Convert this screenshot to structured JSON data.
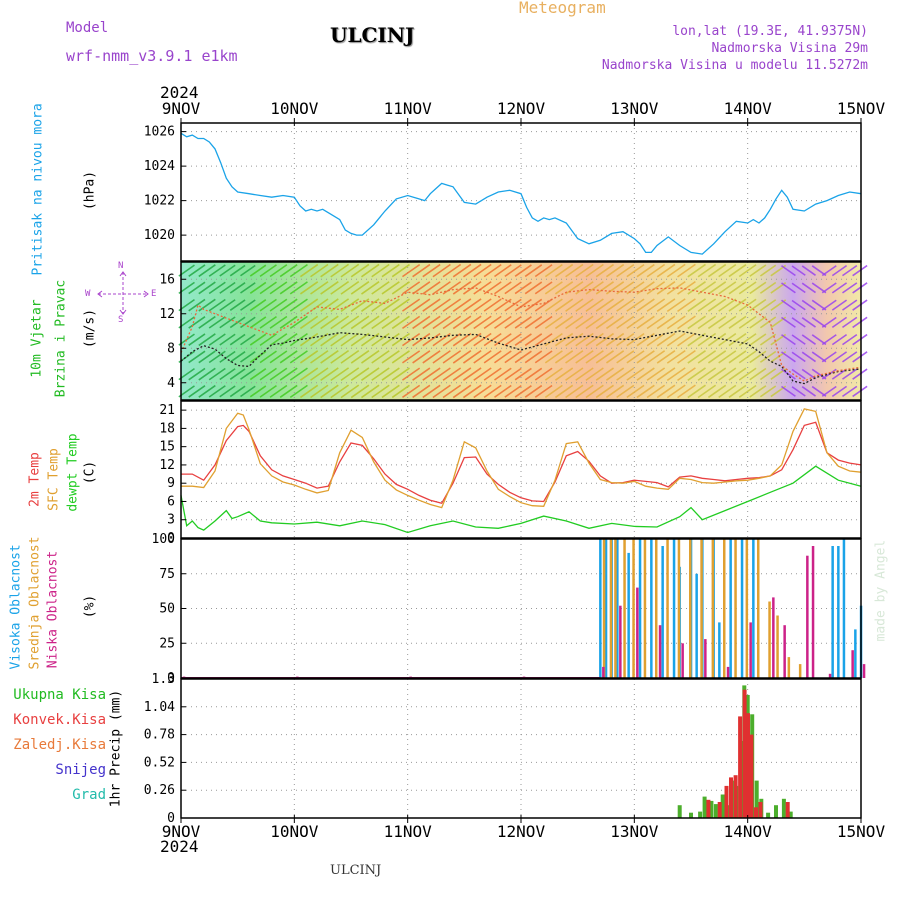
{
  "header": {
    "model_label": "Model",
    "model_name": "wrf-nmm_v3.9.1 e1km",
    "title": "ULCINJ",
    "meteogram": "Meteogram",
    "lonlat": "lon,lat (19.3E, 41.9375N)",
    "altitude": "Nadmorska Visina 29m",
    "model_altitude": "Nadmorska Visina u modelu 11.5272m",
    "year_top": "2024",
    "year_bottom": "2024",
    "footer": "ULCINJ",
    "credit": "made by Angel"
  },
  "colors": {
    "pressure": "#1aa3e8",
    "wind_label": "#22bb22",
    "temp2m": "#e84040",
    "sfc": "#e0a030",
    "dewpt": "#22cc22",
    "high_cloud": "#1aa3e8",
    "mid_cloud": "#e0a030",
    "low_cloud": "#cc2288",
    "precip_total": "#4cae2c",
    "precip_conv": "#e03030"
  },
  "chart_data": [
    {
      "type": "line",
      "panel": "pressure",
      "ylabel_lines": [
        "Pritisak na nivou mora"
      ],
      "unit": "(hPa)",
      "x_ticks": [
        "9NOV",
        "10NOV",
        "11NOV",
        "12NOV",
        "13NOV",
        "14NOV",
        "15NOV"
      ],
      "ylim": [
        1018.5,
        1026.5
      ],
      "yticks": [
        1020,
        1022,
        1024,
        1026
      ],
      "grid": true,
      "series": [
        {
          "color_key": "pressure",
          "x": [
            0,
            0.05,
            0.1,
            0.15,
            0.2,
            0.25,
            0.3,
            0.35,
            0.4,
            0.45,
            0.5,
            0.6,
            0.7,
            0.8,
            0.9,
            1.0,
            1.05,
            1.1,
            1.15,
            1.2,
            1.25,
            1.3,
            1.4,
            1.45,
            1.5,
            1.55,
            1.6,
            1.7,
            1.8,
            1.9,
            2.0,
            2.1,
            2.15,
            2.2,
            2.25,
            2.3,
            2.35,
            2.4,
            2.5,
            2.6,
            2.7,
            2.8,
            2.9,
            3.0,
            3.05,
            3.1,
            3.15,
            3.2,
            3.25,
            3.3,
            3.4,
            3.5,
            3.6,
            3.7,
            3.8,
            3.9,
            4.0,
            4.05,
            4.1,
            4.15,
            4.2,
            4.3,
            4.4,
            4.5,
            4.6,
            4.7,
            4.8,
            4.9,
            5.0,
            5.05,
            5.1,
            5.15,
            5.2,
            5.25,
            5.3,
            5.35,
            5.4,
            5.5,
            5.6,
            5.7,
            5.8,
            5.9,
            6.0
          ],
          "y": [
            1025.9,
            1025.7,
            1025.8,
            1025.6,
            1025.6,
            1025.4,
            1025.0,
            1024.2,
            1023.3,
            1022.8,
            1022.5,
            1022.4,
            1022.3,
            1022.2,
            1022.3,
            1022.2,
            1021.7,
            1021.4,
            1021.5,
            1021.4,
            1021.5,
            1021.3,
            1020.9,
            1020.3,
            1020.1,
            1020.0,
            1020.0,
            1020.6,
            1021.4,
            1022.1,
            1022.3,
            1022.1,
            1022.0,
            1022.4,
            1022.7,
            1023.0,
            1022.9,
            1022.8,
            1021.9,
            1021.8,
            1022.2,
            1022.5,
            1022.6,
            1022.4,
            1021.6,
            1021.0,
            1020.8,
            1021.0,
            1020.9,
            1021.0,
            1020.7,
            1019.8,
            1019.5,
            1019.7,
            1020.1,
            1020.2,
            1019.8,
            1019.5,
            1019.0,
            1019.0,
            1019.4,
            1019.9,
            1019.4,
            1019.0,
            1018.9,
            1019.5,
            1020.2,
            1020.8,
            1020.7,
            1020.9,
            1020.7,
            1021.0,
            1021.5,
            1022.1,
            1022.6,
            1022.2,
            1021.5,
            1021.4,
            1021.8,
            1022.0,
            1022.3,
            1022.5,
            1022.4
          ]
        }
      ]
    },
    {
      "type": "line",
      "panel": "wind",
      "ylabel_lines": [
        "10m Vjetar",
        "Brzina i Pravac"
      ],
      "unit": "(m/s)",
      "compass": {
        "n": "N",
        "s": "S",
        "e": "E",
        "w": "W"
      },
      "ylim": [
        2,
        18
      ],
      "yticks": [
        4,
        8,
        12,
        16
      ],
      "grid": true,
      "series": [
        {
          "name": "",
          "color": "#222222",
          "x": [
            0,
            0.1,
            0.2,
            0.3,
            0.4,
            0.5,
            0.6,
            0.7,
            0.8,
            0.9,
            1.0,
            1.2,
            1.4,
            1.6,
            1.8,
            2.0,
            2.2,
            2.4,
            2.6,
            2.8,
            3.0,
            3.2,
            3.4,
            3.6,
            3.8,
            4.0,
            4.2,
            4.4,
            4.6,
            4.8,
            5.0,
            5.1,
            5.2,
            5.3,
            5.4,
            5.5,
            5.6,
            5.8,
            6.0
          ],
          "y": [
            6.5,
            7.6,
            8.3,
            7.9,
            6.8,
            6.0,
            5.9,
            7.2,
            8.4,
            8.6,
            8.9,
            9.3,
            9.8,
            9.6,
            9.3,
            9.0,
            9.2,
            9.5,
            9.6,
            8.6,
            7.8,
            8.5,
            9.2,
            9.4,
            9.1,
            9.0,
            9.5,
            10.0,
            9.5,
            9.0,
            8.5,
            7.6,
            6.5,
            5.9,
            4.2,
            3.9,
            4.6,
            5.3,
            5.6
          ]
        },
        {
          "name": "",
          "color": "#e86a3a",
          "x": [
            0,
            0.1,
            0.15,
            0.2,
            0.4,
            0.6,
            0.8,
            1.0,
            1.2,
            1.4,
            1.6,
            1.8,
            2.0,
            2.2,
            2.4,
            2.6,
            2.8,
            3.0,
            3.2,
            3.4,
            3.6,
            3.8,
            4.0,
            4.2,
            4.4,
            4.6,
            4.8,
            5.0,
            5.2,
            5.3,
            5.4,
            5.5,
            5.6,
            5.8,
            6.0
          ],
          "y": [
            7.5,
            10.5,
            13.0,
            12.5,
            11.5,
            10.5,
            9.5,
            11.0,
            12.8,
            12.5,
            13.5,
            13.2,
            14.5,
            14.2,
            14.8,
            15.0,
            14.0,
            12.8,
            13.2,
            14.5,
            14.8,
            14.6,
            14.5,
            14.9,
            15.0,
            14.5,
            14.0,
            13.0,
            11.0,
            6.0,
            5.0,
            4.2,
            4.8,
            5.4,
            5.8
          ]
        }
      ]
    },
    {
      "type": "line",
      "panel": "temperature",
      "ylabel_lines": [
        "2m Temp",
        "SFC Temp",
        "dewpt Temp"
      ],
      "unit": "(C)",
      "ylim": [
        0,
        22.5
      ],
      "yticks": [
        0,
        3,
        6,
        9,
        12,
        15,
        18,
        21
      ],
      "grid": true,
      "series": [
        {
          "name": "2m Temp",
          "color_key": "temp2m",
          "x": [
            0,
            0.1,
            0.2,
            0.3,
            0.4,
            0.5,
            0.55,
            0.6,
            0.7,
            0.8,
            0.9,
            1.0,
            1.1,
            1.2,
            1.3,
            1.4,
            1.5,
            1.6,
            1.7,
            1.8,
            1.9,
            2.0,
            2.1,
            2.2,
            2.3,
            2.4,
            2.5,
            2.6,
            2.7,
            2.8,
            2.9,
            3.0,
            3.1,
            3.2,
            3.3,
            3.4,
            3.5,
            3.6,
            3.7,
            3.8,
            3.9,
            4.0,
            4.1,
            4.2,
            4.3,
            4.4,
            4.5,
            4.6,
            4.7,
            4.8,
            4.9,
            5.0,
            5.1,
            5.2,
            5.3,
            5.4,
            5.5,
            5.6,
            5.7,
            5.8,
            5.9,
            6.0
          ],
          "y": [
            10.5,
            10.5,
            9.5,
            12.0,
            16.0,
            18.3,
            18.5,
            17.5,
            13.5,
            11.2,
            10.2,
            9.6,
            9.0,
            8.2,
            8.5,
            12.5,
            15.6,
            15.2,
            13.0,
            10.5,
            8.8,
            8.0,
            7.0,
            6.2,
            5.7,
            9.0,
            13.2,
            13.3,
            10.5,
            8.8,
            7.5,
            6.6,
            6.1,
            6.0,
            9.2,
            13.5,
            14.2,
            12.6,
            10.2,
            9.0,
            9.1,
            9.5,
            9.3,
            9.1,
            8.4,
            10.0,
            10.2,
            9.8,
            9.6,
            9.4,
            9.6,
            9.8,
            9.9,
            10.2,
            11.2,
            14.5,
            18.5,
            19.0,
            14.0,
            12.8,
            12.3,
            12.0
          ]
        },
        {
          "name": "SFC Temp",
          "color_key": "sfc",
          "x": [
            0,
            0.1,
            0.2,
            0.3,
            0.4,
            0.5,
            0.55,
            0.6,
            0.7,
            0.8,
            0.9,
            1.0,
            1.1,
            1.2,
            1.3,
            1.4,
            1.5,
            1.6,
            1.7,
            1.8,
            1.9,
            2.0,
            2.1,
            2.2,
            2.3,
            2.4,
            2.5,
            2.6,
            2.7,
            2.8,
            2.9,
            3.0,
            3.1,
            3.2,
            3.3,
            3.4,
            3.5,
            3.6,
            3.7,
            3.8,
            3.9,
            4.0,
            4.1,
            4.2,
            4.3,
            4.4,
            4.5,
            4.6,
            4.7,
            4.8,
            4.9,
            5.0,
            5.1,
            5.2,
            5.3,
            5.4,
            5.5,
            5.6,
            5.7,
            5.8,
            5.9,
            6.0
          ],
          "y": [
            8.5,
            8.5,
            8.3,
            11.0,
            18.0,
            20.5,
            20.2,
            17.8,
            12.2,
            10.2,
            9.2,
            8.7,
            8.0,
            7.4,
            7.8,
            14.0,
            17.7,
            16.5,
            12.5,
            9.5,
            7.9,
            7.0,
            6.2,
            5.5,
            5.0,
            9.5,
            15.8,
            14.8,
            11.0,
            8.0,
            6.8,
            5.8,
            5.3,
            5.2,
            9.5,
            15.5,
            15.8,
            12.3,
            9.6,
            9.1,
            9.0,
            9.3,
            8.5,
            8.2,
            8.0,
            9.8,
            9.6,
            9.1,
            9.0,
            9.2,
            9.4,
            9.5,
            9.8,
            10.2,
            12.0,
            17.5,
            21.2,
            20.8,
            14.0,
            11.8,
            11.0,
            10.8
          ]
        },
        {
          "name": "dewpt Temp",
          "color_key": "dewpt",
          "x": [
            0,
            0.05,
            0.1,
            0.15,
            0.2,
            0.3,
            0.4,
            0.45,
            0.5,
            0.6,
            0.7,
            0.8,
            1.0,
            1.2,
            1.4,
            1.6,
            1.8,
            2.0,
            2.2,
            2.4,
            2.6,
            2.8,
            3.0,
            3.2,
            3.4,
            3.6,
            3.8,
            4.0,
            4.2,
            4.4,
            4.5,
            4.6,
            4.8,
            5.0,
            5.2,
            5.4,
            5.6,
            5.8,
            6.0
          ],
          "y": [
            7.0,
            2.0,
            2.8,
            1.7,
            1.3,
            2.8,
            4.5,
            3.2,
            3.5,
            4.3,
            2.8,
            2.5,
            2.3,
            2.6,
            2.0,
            2.8,
            2.2,
            0.9,
            2.0,
            2.8,
            1.8,
            1.6,
            2.4,
            3.6,
            2.8,
            1.6,
            2.4,
            1.9,
            1.8,
            3.5,
            5.0,
            3.0,
            4.5,
            6.0,
            7.5,
            9.0,
            11.8,
            9.5,
            8.5
          ]
        }
      ]
    },
    {
      "type": "bar",
      "panel": "cloud",
      "ylabel_lines": [
        "Visoka Oblacnost",
        "Srednja Oblacnost",
        "Niska Oblacnost"
      ],
      "unit": "(%)",
      "ylim": [
        0,
        100
      ],
      "yticks": [
        0,
        25,
        50,
        75,
        100
      ],
      "grid": true,
      "series": [
        {
          "name": "Visoka Oblacnost",
          "color_key": "high_cloud",
          "x": [
            3.7,
            3.75,
            3.8,
            3.85,
            3.95,
            4.05,
            4.15,
            4.25,
            4.35,
            4.4,
            4.5,
            4.55,
            4.6,
            4.7,
            4.75,
            4.85,
            4.95,
            5.05,
            5.75,
            5.8,
            5.85,
            5.95,
            6.0
          ],
          "y": [
            100,
            100,
            100,
            100,
            90,
            100,
            100,
            95,
            100,
            80,
            100,
            75,
            100,
            100,
            40,
            100,
            100,
            100,
            95,
            95,
            100,
            35,
            52
          ]
        },
        {
          "name": "Srednja Oblacnost",
          "color_key": "mid_cloud",
          "x": [
            3.72,
            3.78,
            3.82,
            3.9,
            3.98,
            4.08,
            4.18,
            4.28,
            4.38,
            4.48,
            4.58,
            4.68,
            4.78,
            4.88,
            4.98,
            5.08,
            5.18,
            5.25,
            5.35,
            5.45
          ],
          "y": [
            100,
            100,
            100,
            100,
            100,
            100,
            100,
            100,
            100,
            100,
            100,
            100,
            100,
            100,
            100,
            100,
            55,
            45,
            15,
            10
          ]
        },
        {
          "name": "Niska Oblacnost",
          "color_key": "low_cloud",
          "x": [
            0,
            1,
            2,
            3,
            3.7,
            3.85,
            4.0,
            4.2,
            4.4,
            4.6,
            4.8,
            5.0,
            5.2,
            5.3,
            5.5,
            5.55,
            5.7,
            5.9,
            6.0
          ],
          "y": [
            1,
            1,
            1,
            1,
            8,
            52,
            65,
            38,
            25,
            28,
            8,
            40,
            58,
            38,
            88,
            95,
            3,
            20,
            10
          ]
        }
      ]
    },
    {
      "type": "bar",
      "panel": "precip",
      "legend": [
        "Ukupna Kisa",
        "Konvek.Kisa",
        "Zaledj.Kisa",
        "Snijeg",
        "Grad"
      ],
      "ylabel": "1hr Precip (mm)",
      "ylim": [
        0,
        1.3
      ],
      "yticks": [
        0,
        0.26,
        0.52,
        0.78,
        1.04,
        1.3
      ],
      "grid": true,
      "series": [
        {
          "name": "Ukupna Kisa",
          "color_key": "precip_total",
          "x": [
            4.4,
            4.5,
            4.58,
            4.62,
            4.68,
            4.72,
            4.78,
            4.82,
            4.86,
            4.9,
            4.94,
            4.97,
            5.0,
            5.04,
            5.08,
            5.12,
            5.18,
            5.25,
            5.32,
            5.38
          ],
          "y": [
            0.12,
            0.05,
            0.06,
            0.2,
            0.16,
            0.13,
            0.22,
            0.12,
            0.35,
            0.3,
            0.72,
            1.24,
            1.15,
            0.97,
            0.35,
            0.18,
            0.05,
            0.12,
            0.18,
            0.06
          ]
        },
        {
          "name": "Konvek.Kisa",
          "color_key": "precip_conv",
          "x": [
            4.64,
            4.74,
            4.8,
            4.84,
            4.88,
            4.92,
            4.96,
            4.99,
            5.02,
            5.06,
            5.1,
            5.34
          ],
          "y": [
            0.17,
            0.15,
            0.3,
            0.38,
            0.4,
            0.95,
            1.2,
            0.98,
            0.78,
            0.1,
            0.15,
            0.15
          ]
        }
      ]
    }
  ]
}
